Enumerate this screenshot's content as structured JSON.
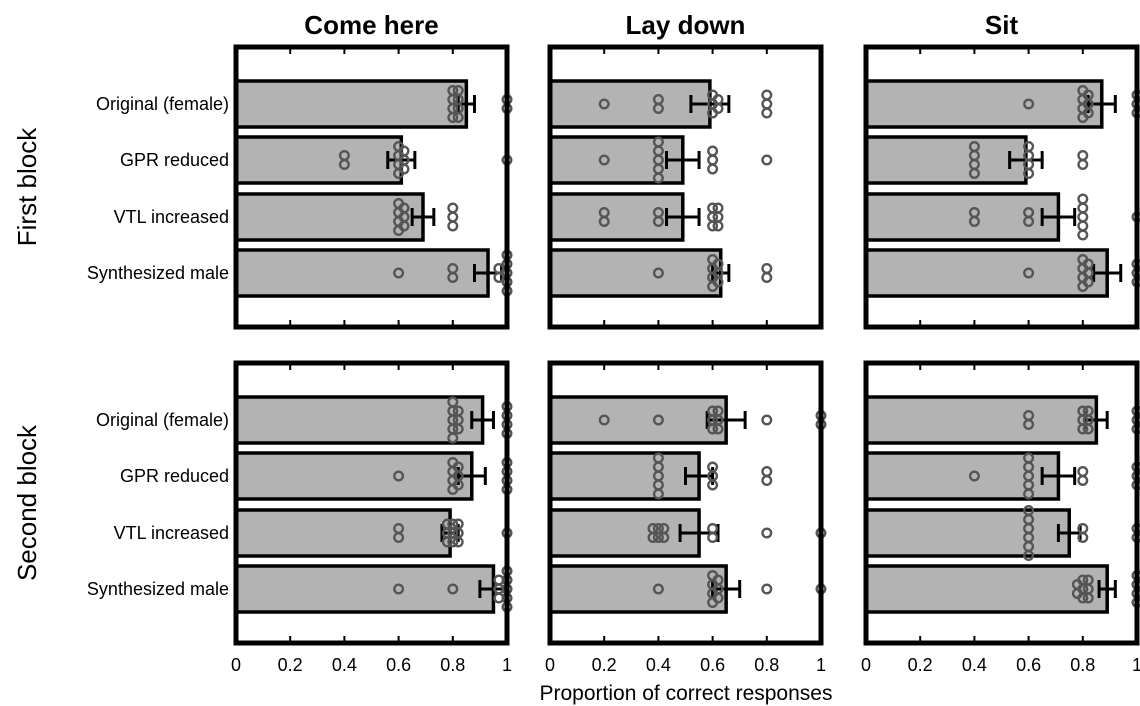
{
  "chart_data": {
    "type": "bar",
    "orientation": "horizontal",
    "xlabel": "Proportion of correct responses",
    "xlim": [
      0,
      1
    ],
    "xticks": [
      "0",
      "0.2",
      "0.4",
      "0.6",
      "0.8",
      "1"
    ],
    "categories": [
      "Original (female)",
      "GPR reduced",
      "VTL increased",
      "Synthesized male"
    ],
    "columns": [
      "Come here",
      "Lay down",
      "Sit"
    ],
    "rows": [
      "First block",
      "Second block"
    ],
    "colors": {
      "bar": "#b3b3b3",
      "point": "#555555"
    },
    "panels": [
      {
        "row": 0,
        "col": 0,
        "values": [
          0.85,
          0.61,
          0.69,
          0.93
        ],
        "errors": [
          0.03,
          0.05,
          0.04,
          0.05
        ],
        "points": [
          [
            0.8,
            0.8,
            0.8,
            0.8,
            0.82,
            0.82,
            0.82,
            0.82,
            1,
            1
          ],
          [
            0.4,
            0.4,
            0.6,
            0.6,
            0.6,
            0.6,
            0.62,
            0.62,
            0.62,
            1
          ],
          [
            0.6,
            0.6,
            0.6,
            0.6,
            0.62,
            0.62,
            0.62,
            0.8,
            0.8,
            0.8
          ],
          [
            0.6,
            0.8,
            0.8,
            0.97,
            0.97,
            1,
            1,
            1,
            1,
            1
          ]
        ]
      },
      {
        "row": 0,
        "col": 1,
        "values": [
          0.59,
          0.49,
          0.49,
          0.63
        ],
        "errors": [
          0.07,
          0.06,
          0.06,
          0.03
        ],
        "points": [
          [
            0.2,
            0.4,
            0.4,
            0.6,
            0.6,
            0.6,
            0.62,
            0.62,
            0.8,
            0.8,
            0.8
          ],
          [
            0.2,
            0.4,
            0.4,
            0.4,
            0.4,
            0.4,
            0.6,
            0.6,
            0.6,
            0.8
          ],
          [
            0.2,
            0.2,
            0.4,
            0.4,
            0.6,
            0.6,
            0.6,
            0.62,
            0.62,
            0.62
          ],
          [
            0.4,
            0.6,
            0.6,
            0.6,
            0.6,
            0.62,
            0.62,
            0.62,
            0.8,
            0.8
          ]
        ]
      },
      {
        "row": 0,
        "col": 2,
        "values": [
          0.87,
          0.59,
          0.71,
          0.89
        ],
        "errors": [
          0.05,
          0.06,
          0.06,
          0.05
        ],
        "points": [
          [
            0.6,
            0.8,
            0.8,
            0.8,
            0.8,
            0.82,
            0.82,
            0.82,
            1,
            1,
            1
          ],
          [
            0.4,
            0.4,
            0.4,
            0.4,
            0.6,
            0.6,
            0.6,
            0.6,
            0.8,
            0.8
          ],
          [
            0.4,
            0.4,
            0.6,
            0.6,
            0.8,
            0.8,
            0.8,
            0.8,
            0.8,
            1
          ],
          [
            0.6,
            0.8,
            0.8,
            0.8,
            0.8,
            0.82,
            0.82,
            0.82,
            1,
            1,
            1
          ]
        ]
      },
      {
        "row": 1,
        "col": 0,
        "values": [
          0.91,
          0.87,
          0.79,
          0.95
        ],
        "errors": [
          0.04,
          0.05,
          0.03,
          0.05
        ],
        "points": [
          [
            0.8,
            0.8,
            0.8,
            0.8,
            0.8,
            0.82,
            0.82,
            0.82,
            1,
            1,
            1,
            1
          ],
          [
            0.6,
            0.8,
            0.8,
            0.8,
            0.8,
            0.82,
            0.82,
            0.82,
            1,
            1,
            1,
            1
          ],
          [
            0.6,
            0.6,
            0.78,
            0.78,
            0.78,
            0.8,
            0.8,
            0.8,
            0.82,
            0.82,
            0.82,
            1
          ],
          [
            0.6,
            0.8,
            0.97,
            0.97,
            0.97,
            1,
            1,
            1,
            1,
            1
          ]
        ]
      },
      {
        "row": 1,
        "col": 1,
        "values": [
          0.65,
          0.55,
          0.55,
          0.65
        ],
        "errors": [
          0.07,
          0.05,
          0.07,
          0.05
        ],
        "points": [
          [
            0.2,
            0.4,
            0.6,
            0.6,
            0.6,
            0.62,
            0.62,
            0.62,
            0.8,
            1,
            1
          ],
          [
            0.4,
            0.4,
            0.4,
            0.4,
            0.4,
            0.6,
            0.6,
            0.6,
            0.8,
            0.8
          ],
          [
            0.38,
            0.38,
            0.4,
            0.4,
            0.42,
            0.42,
            0.6,
            0.6,
            0.8,
            1
          ],
          [
            0.4,
            0.6,
            0.6,
            0.6,
            0.6,
            0.62,
            0.62,
            0.62,
            0.8,
            1
          ]
        ]
      },
      {
        "row": 1,
        "col": 2,
        "values": [
          0.85,
          0.71,
          0.75,
          0.89
        ],
        "errors": [
          0.04,
          0.06,
          0.04,
          0.03
        ],
        "points": [
          [
            0.6,
            0.6,
            0.8,
            0.8,
            0.8,
            0.82,
            0.82,
            0.82,
            1,
            1,
            1
          ],
          [
            0.4,
            0.6,
            0.6,
            0.6,
            0.6,
            0.6,
            0.8,
            0.8,
            1,
            1,
            1
          ],
          [
            0.6,
            0.6,
            0.6,
            0.6,
            0.6,
            0.6,
            0.8,
            0.8,
            1,
            1
          ],
          [
            0.78,
            0.78,
            0.8,
            0.8,
            0.8,
            0.82,
            0.82,
            0.82,
            1,
            1,
            1,
            1
          ]
        ]
      }
    ]
  }
}
